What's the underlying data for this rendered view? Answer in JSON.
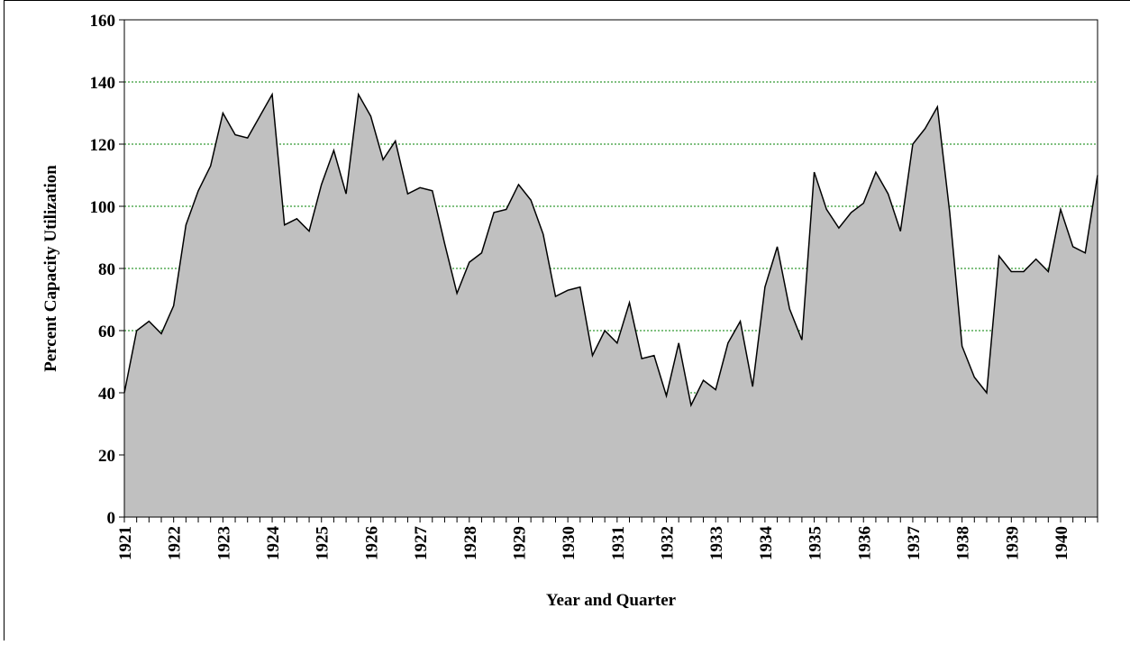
{
  "chart_data": {
    "type": "area",
    "x_label": "Year and Quarter",
    "y_label": "Percent Capacity Utilization",
    "categories": [
      "1921",
      null,
      null,
      null,
      "1922",
      null,
      null,
      null,
      "1923",
      null,
      null,
      null,
      "1924",
      null,
      null,
      null,
      "1925",
      null,
      null,
      null,
      "1926",
      null,
      null,
      null,
      "1927",
      null,
      null,
      null,
      "1928",
      null,
      null,
      null,
      "1929",
      null,
      null,
      null,
      "1930",
      null,
      null,
      null,
      "1931",
      null,
      null,
      null,
      "1932",
      null,
      null,
      null,
      "1933",
      null,
      null,
      null,
      "1934",
      null,
      null,
      null,
      "1935",
      null,
      null,
      null,
      "1936",
      null,
      null,
      null,
      "1937",
      null,
      null,
      null,
      "1938",
      null,
      null,
      null,
      "1939",
      null,
      null,
      null,
      "1940",
      null,
      null,
      null
    ],
    "values": [
      40,
      60,
      63,
      59,
      68,
      94,
      105,
      113,
      130,
      123,
      122,
      129,
      136,
      94,
      96,
      92,
      107,
      118,
      104,
      136,
      129,
      115,
      121,
      104,
      106,
      105,
      88,
      72,
      82,
      85,
      98,
      99,
      107,
      102,
      91,
      71,
      73,
      74,
      52,
      60,
      56,
      69,
      51,
      52,
      39,
      56,
      36,
      44,
      41,
      56,
      63,
      42,
      74,
      87,
      67,
      57,
      111,
      99,
      93,
      98,
      101,
      111,
      104,
      92,
      120,
      125,
      132,
      98,
      55,
      45,
      40,
      84,
      79,
      79,
      83,
      79,
      99,
      87,
      85,
      110
    ],
    "color": "#c0c0c0",
    "ylim": [
      0,
      160
    ],
    "yticks": [
      0,
      20,
      40,
      60,
      80,
      100,
      120,
      140,
      160
    ],
    "grid": true
  }
}
